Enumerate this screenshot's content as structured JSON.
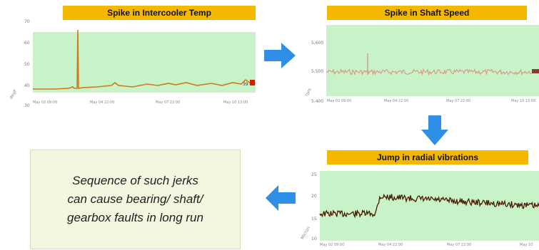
{
  "colors": {
    "title_bg": "#f5b800",
    "plot_bg": "#c8f2c8",
    "arrow": "#2f8fe6",
    "note_bg": "#f4f7e0",
    "line_intercooler": "#cc7a1a",
    "line_shaft": "#d99a8a",
    "line_vibration": "#4a1a00"
  },
  "panels": {
    "intercooler": {
      "title": "Spike in Intercooler Temp",
      "y_ticks": [
        "70",
        "60",
        "50",
        "40",
        "30"
      ],
      "unit": "degF",
      "x_ticks": [
        "May 02 09:00",
        "May 04 22:00",
        "May 07 22:00",
        "May 10 13:00"
      ],
      "end_value": "39"
    },
    "shaft": {
      "title": "Spike in Shaft Speed",
      "y_ticks": [
        "5,600",
        "5,500",
        "5,400"
      ],
      "unit": "rpm",
      "x_ticks": [
        "May 02 09:00",
        "May 04 22:00",
        "May 07 22:00",
        "May 10 13:00"
      ]
    },
    "vibration": {
      "title": "Jump in radial vibrations",
      "y_ticks": [
        "25",
        "20",
        "15",
        "10"
      ],
      "unit": "Micron",
      "x_ticks": [
        "May 02 09:00",
        "May 04 22:00",
        "May 07 22:00",
        "May 10"
      ]
    }
  },
  "note": {
    "lines": [
      "Sequence of such jerks",
      "can cause bearing/ shaft/",
      "gearbox faults in long run"
    ]
  },
  "arrows": [
    "right",
    "down",
    "left"
  ]
}
